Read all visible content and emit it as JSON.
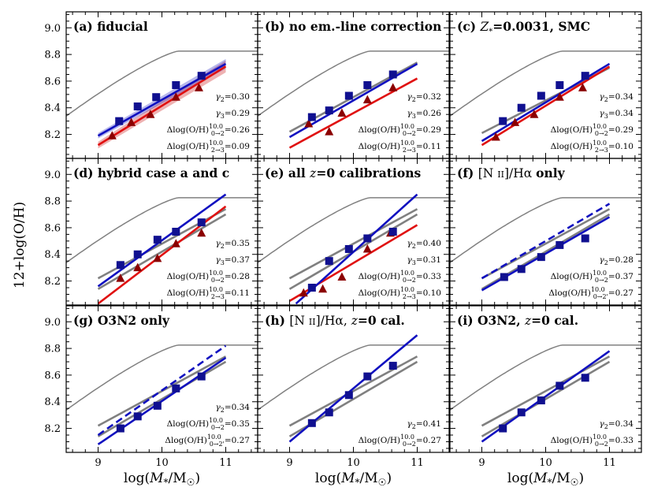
{
  "chart_data": {
    "type": "line",
    "layout": "3x3 grid of panels sharing axes",
    "xlabel": "log(M*/M☉)",
    "ylabel": "12+log(O/H)",
    "xlim": [
      8.5,
      11.5
    ],
    "ylim": [
      8.02,
      9.12
    ],
    "xticks": [
      "9",
      "10",
      "11"
    ],
    "yticks": [
      "8.2",
      "8.4",
      "8.6",
      "8.8",
      "9.0"
    ],
    "colors": {
      "z2": "#1010c0",
      "z3": "#c80000",
      "ref": "#808080",
      "square": "#101090",
      "triangle": "#8b0000"
    },
    "panels": [
      {
        "id": "a",
        "title": "(a) fiducial",
        "squares": [
          [
            9.33,
            8.3
          ],
          [
            9.62,
            8.41
          ],
          [
            9.91,
            8.48
          ],
          [
            10.22,
            8.57
          ],
          [
            10.62,
            8.64
          ]
        ],
        "triangles": [
          [
            9.22,
            8.19
          ],
          [
            9.52,
            8.29
          ],
          [
            9.82,
            8.35
          ],
          [
            10.22,
            8.48
          ],
          [
            10.58,
            8.55
          ]
        ],
        "fit_z2": [
          [
            9.0,
            8.19
          ],
          [
            11.0,
            8.73
          ]
        ],
        "fit_z3": [
          [
            9.0,
            8.12
          ],
          [
            11.0,
            8.71
          ]
        ],
        "ref_lines": [],
        "annotations": [
          "γ2=0.30",
          "γ3=0.29",
          "Δlog(O/H)10.0 0→2=0.26",
          "Δlog(O/H)10.0 2→3=0.09"
        ]
      },
      {
        "id": "b",
        "title": "(b) no em.-line correction",
        "squares": [
          [
            9.35,
            8.33
          ],
          [
            9.62,
            8.38
          ],
          [
            9.93,
            8.49
          ],
          [
            10.22,
            8.57
          ],
          [
            10.62,
            8.65
          ]
        ],
        "triangles": [
          [
            9.3,
            8.28
          ],
          [
            9.62,
            8.22
          ],
          [
            9.82,
            8.36
          ],
          [
            10.22,
            8.46
          ],
          [
            10.62,
            8.55
          ]
        ],
        "fit_z2": [
          [
            9.0,
            8.18
          ],
          [
            11.0,
            8.73
          ]
        ],
        "fit_z3": [
          [
            9.0,
            8.1
          ],
          [
            11.0,
            8.62
          ]
        ],
        "ref_lines": [
          [
            [
              9.0,
              8.22
            ],
            [
              11.0,
              8.74
            ]
          ]
        ],
        "annotations": [
          "γ2=0.32",
          "γ3=0.26",
          "Δlog(O/H)10.0 0→2=0.29",
          "Δlog(O/H)10.0 2→3=0.11"
        ]
      },
      {
        "id": "c",
        "title": "(c) Z*=0.0031, SMC",
        "squares": [
          [
            9.33,
            8.3
          ],
          [
            9.62,
            8.4
          ],
          [
            9.93,
            8.49
          ],
          [
            10.22,
            8.57
          ],
          [
            10.62,
            8.64
          ]
        ],
        "triangles": [
          [
            9.22,
            8.18
          ],
          [
            9.52,
            8.29
          ],
          [
            9.82,
            8.35
          ],
          [
            10.22,
            8.48
          ],
          [
            10.58,
            8.55
          ]
        ],
        "fit_z2": [
          [
            9.0,
            8.15
          ],
          [
            11.0,
            8.73
          ]
        ],
        "fit_z3": [
          [
            9.0,
            8.12
          ],
          [
            11.0,
            8.71
          ]
        ],
        "ref_lines": [
          [
            [
              9.0,
              8.21
            ],
            [
              11.0,
              8.7
            ]
          ]
        ],
        "annotations": [
          "γ2=0.34",
          "γ3=0.34",
          "Δlog(O/H)10.0 0→2=0.29",
          "Δlog(O/H)10.0 2→3=0.10"
        ]
      },
      {
        "id": "d",
        "title": "(d) hybrid case a and c",
        "squares": [
          [
            9.35,
            8.32
          ],
          [
            9.62,
            8.4
          ],
          [
            9.93,
            8.51
          ],
          [
            10.22,
            8.57
          ],
          [
            10.62,
            8.64
          ]
        ],
        "triangles": [
          [
            9.35,
            8.22
          ],
          [
            9.62,
            8.3
          ],
          [
            9.93,
            8.37
          ],
          [
            10.22,
            8.48
          ],
          [
            10.62,
            8.56
          ]
        ],
        "fit_z2": [
          [
            9.0,
            8.16
          ],
          [
            11.0,
            8.85
          ]
        ],
        "fit_z3": [
          [
            9.0,
            8.03
          ],
          [
            11.0,
            8.76
          ]
        ],
        "ref_lines": [
          [
            [
              9.0,
              8.22
            ],
            [
              11.0,
              8.74
            ]
          ],
          [
            [
              9.0,
              8.14
            ],
            [
              11.0,
              8.7
            ]
          ]
        ],
        "annotations": [
          "γ2=0.35",
          "γ3=0.37",
          "Δlog(O/H)10.0 0→2=0.28",
          "Δlog(O/H)10.0 2→3=0.11"
        ]
      },
      {
        "id": "e",
        "title": "(e) all z=0 calibrations",
        "squares": [
          [
            9.35,
            8.15
          ],
          [
            9.62,
            8.35
          ],
          [
            9.93,
            8.44
          ],
          [
            10.22,
            8.52
          ],
          [
            10.62,
            8.57
          ]
        ],
        "triangles": [
          [
            9.22,
            8.11
          ],
          [
            9.52,
            8.14
          ],
          [
            9.82,
            8.23
          ],
          [
            10.22,
            8.44
          ],
          [
            10.58,
            8.56
          ]
        ],
        "fit_z2": [
          [
            9.1,
            8.03
          ],
          [
            11.0,
            8.85
          ]
        ],
        "fit_z3": [
          [
            9.0,
            8.05
          ],
          [
            11.0,
            8.62
          ]
        ],
        "ref_lines": [
          [
            [
              9.0,
              8.22
            ],
            [
              11.0,
              8.74
            ]
          ],
          [
            [
              9.0,
              8.14
            ],
            [
              11.0,
              8.7
            ]
          ]
        ],
        "annotations": [
          "γ2=0.40",
          "γ3=0.31",
          "Δlog(O/H)10.0 0→2=0.33",
          "Δlog(O/H)10.0 2→3=0.10"
        ]
      },
      {
        "id": "f",
        "title": "[N II]/Hα only",
        "label": "(f)",
        "squares": [
          [
            9.35,
            8.23
          ],
          [
            9.62,
            8.29
          ],
          [
            9.93,
            8.38
          ],
          [
            10.22,
            8.47
          ],
          [
            10.62,
            8.52
          ]
        ],
        "triangles": [],
        "fit_z2": [
          [
            9.0,
            8.13
          ],
          [
            11.0,
            8.68
          ]
        ],
        "fit_z2_dashed": [
          [
            9.0,
            8.22
          ],
          [
            11.0,
            8.78
          ]
        ],
        "fit_z3": null,
        "ref_lines": [
          [
            [
              9.0,
              8.22
            ],
            [
              11.0,
              8.74
            ]
          ],
          [
            [
              9.0,
              8.14
            ],
            [
              11.0,
              8.7
            ]
          ]
        ],
        "annotations": [
          "γ2=0.28",
          "Δlog(O/H)10.0 0→2=0.37",
          "Δlog(O/H)10.0 0→2'=0.27"
        ]
      },
      {
        "id": "g",
        "title": "(g) O3N2 only",
        "squares": [
          [
            9.35,
            8.2
          ],
          [
            9.62,
            8.29
          ],
          [
            9.93,
            8.37
          ],
          [
            10.22,
            8.5
          ],
          [
            10.62,
            8.59
          ]
        ],
        "triangles": [],
        "fit_z2": [
          [
            9.0,
            8.08
          ],
          [
            11.0,
            8.73
          ]
        ],
        "fit_z2_dashed": [
          [
            9.0,
            8.15
          ],
          [
            11.0,
            8.82
          ]
        ],
        "fit_z3": null,
        "ref_lines": [
          [
            [
              9.0,
              8.22
            ],
            [
              11.0,
              8.74
            ]
          ],
          [
            [
              9.0,
              8.14
            ],
            [
              11.0,
              8.7
            ]
          ]
        ],
        "annotations": [
          "γ2=0.34",
          "Δlog(O/H)10.0 0→2=0.35",
          "Δlog(O/H)10.0 0→2'=0.27"
        ]
      },
      {
        "id": "h",
        "title": "z=0 cal.",
        "label": "(h) [N II]/Hα,",
        "squares": [
          [
            9.35,
            8.24
          ],
          [
            9.62,
            8.32
          ],
          [
            9.93,
            8.45
          ],
          [
            10.22,
            8.59
          ],
          [
            10.62,
            8.67
          ]
        ],
        "triangles": [],
        "fit_z2": [
          [
            9.0,
            8.1
          ],
          [
            11.0,
            8.9
          ]
        ],
        "fit_z3": null,
        "ref_lines": [
          [
            [
              9.0,
              8.22
            ],
            [
              11.0,
              8.74
            ]
          ],
          [
            [
              9.0,
              8.14
            ],
            [
              11.0,
              8.7
            ]
          ]
        ],
        "annotations": [
          "γ2=0.41",
          "Δlog(O/H)10.0 0→2=0.27"
        ]
      },
      {
        "id": "i",
        "title": "(i) O3N2, z=0 cal.",
        "squares": [
          [
            9.33,
            8.2
          ],
          [
            9.62,
            8.32
          ],
          [
            9.93,
            8.41
          ],
          [
            10.22,
            8.52
          ],
          [
            10.62,
            8.58
          ]
        ],
        "triangles": [],
        "fit_z2": [
          [
            9.0,
            8.1
          ],
          [
            11.0,
            8.78
          ]
        ],
        "fit_z3": null,
        "ref_lines": [
          [
            [
              9.0,
              8.22
            ],
            [
              11.0,
              8.74
            ]
          ],
          [
            [
              9.0,
              8.14
            ],
            [
              11.0,
              8.7
            ]
          ]
        ],
        "annotations": [
          "γ2=0.34",
          "Δlog(O/H)10.0 0→2=0.33"
        ]
      }
    ]
  }
}
